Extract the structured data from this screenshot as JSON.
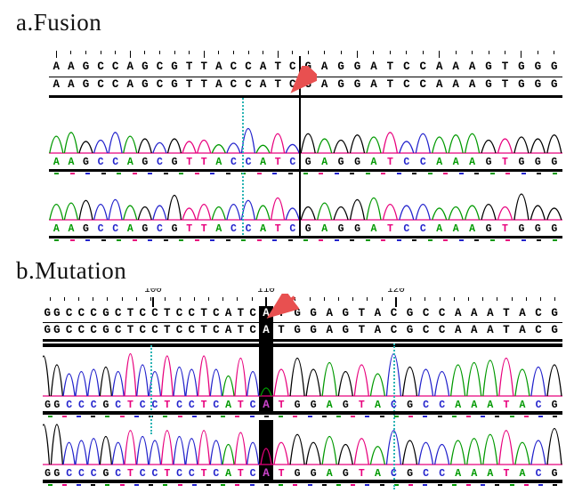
{
  "base_colors": {
    "A": "#009900",
    "C": "#2222cc",
    "G": "#000000",
    "T": "#e8007d"
  },
  "style": {
    "highlight_bg": "#000000",
    "highlight_text_color": "#ffffff",
    "highlight_chrom_text_color": "#cc44cc",
    "dotted_guide_color": "#2ab4b4",
    "arrow_color": "#e85050",
    "trace_baseline_color": "#e8007d",
    "dash_palette": [
      "#009900",
      "#e8007d",
      "#2222cc",
      "#000000"
    ]
  },
  "chart_data": [
    {
      "type": "line",
      "title": "a.Fusion",
      "description": "Sanger sequencing chromatograms of a fusion junction; vertical line and red arrow mark the breakpoint between C and G",
      "sequence_left": "AAGCCAGCGTTACCATC",
      "sequence_right": "GAGGATCCAAAGTGGG",
      "text_rows": [
        "AAGCCAGCGTTACCATC GAGGATCCAAAGTGGG",
        "AAGCCAGCGTTACCATC GAGGATCCAAAGTGGG"
      ],
      "junction_marker": "vertical-black-line-with-red-arrow",
      "dotted_guide_base_index": 13,
      "traces": [
        {
          "name": "chromatogram-1",
          "heights_left": [
            0.65,
            0.8,
            0.45,
            0.5,
            0.8,
            0.65,
            0.55,
            0.4,
            0.55,
            0.45,
            0.5,
            0.32,
            0.38,
            0.95,
            0.3,
            0.75,
            0.33
          ],
          "heights_right": [
            0.75,
            0.55,
            0.5,
            0.7,
            0.62,
            0.8,
            0.45,
            0.75,
            0.62,
            0.7,
            0.75,
            0.5,
            0.55,
            0.62,
            0.55,
            0.7
          ]
        },
        {
          "name": "chromatogram-2",
          "heights_left": [
            0.6,
            0.65,
            0.75,
            0.6,
            0.78,
            0.55,
            0.5,
            0.55,
            0.95,
            0.45,
            0.6,
            0.5,
            0.6,
            0.75,
            0.55,
            0.85,
            0.45
          ],
          "heights_right": [
            0.5,
            0.65,
            0.5,
            0.78,
            0.85,
            0.6,
            0.55,
            0.6,
            0.45,
            0.5,
            0.55,
            0.6,
            0.5,
            1.0,
            0.55,
            0.45
          ]
        }
      ]
    },
    {
      "type": "line",
      "title": "b.Mutation",
      "description": "Sanger sequencing chromatograms showing a point mutation; mutated base A highlighted in black and marked with red arrow",
      "ruler_labels": [
        "100",
        "110",
        "120"
      ],
      "partial_left_char": "G",
      "sequence_left": "GCCCGCTCCTCCTCATC",
      "highlight_char": "A",
      "sequence_right": "TGGAGTACGCCAAATACG",
      "text_rows": [
        "GCCCGCTCCTCCTCATC A TGGAGTACGCCAAATACG",
        "GCCCGCTCCTCCTCATC A TGGAGTACGCCAAATACG"
      ],
      "traces": [
        {
          "name": "chromatogram-1",
          "partial_peak_height": 0.9,
          "heights_left": [
            0.7,
            0.5,
            0.55,
            0.6,
            0.65,
            0.55,
            0.95,
            0.7,
            0.55,
            0.9,
            0.65,
            0.6,
            0.9,
            0.6,
            0.45,
            0.85,
            0.55
          ],
          "highlight_peak_height": 0.18,
          "heights_right": [
            0.6,
            0.85,
            0.6,
            0.75,
            0.55,
            0.7,
            0.5,
            0.95,
            0.65,
            0.6,
            0.55,
            0.7,
            0.75,
            0.8,
            0.85,
            0.6,
            0.65,
            0.7
          ]
        },
        {
          "name": "chromatogram-2",
          "partial_peak_height": 1.0,
          "heights_left": [
            1.0,
            0.55,
            0.6,
            0.65,
            0.7,
            0.55,
            0.85,
            0.7,
            0.6,
            0.85,
            0.7,
            0.65,
            0.85,
            0.6,
            0.5,
            0.8,
            0.55
          ],
          "highlight_peak_height": 0.4,
          "heights_right": [
            0.55,
            0.75,
            0.55,
            0.7,
            0.5,
            0.65,
            0.45,
            0.85,
            0.6,
            0.55,
            0.5,
            0.6,
            0.65,
            0.75,
            0.85,
            0.55,
            0.6,
            0.9
          ]
        }
      ]
    }
  ]
}
